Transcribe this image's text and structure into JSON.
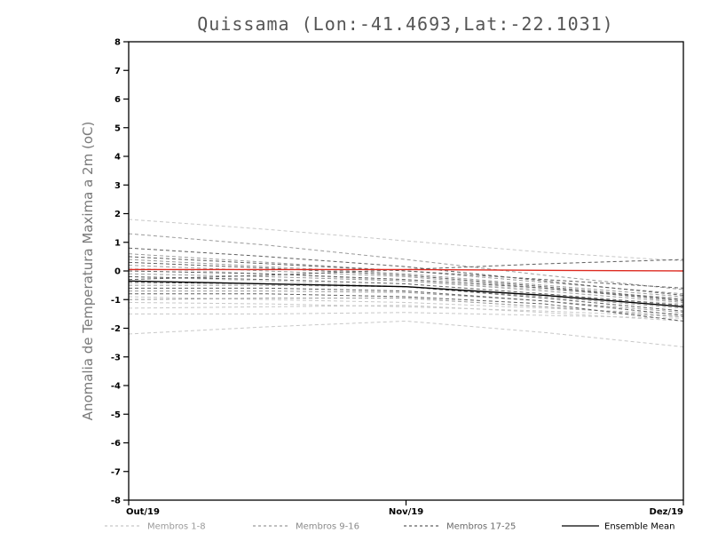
{
  "chart_data": {
    "type": "line",
    "title": "Quissama (Lon:-41.4693,Lat:-22.1031)",
    "ylabel": "Anomalia de Temperatura Maxima a 2m (oC)",
    "xlabel": "",
    "ylim": [
      -8,
      8
    ],
    "ytick_step": 1,
    "grid": false,
    "legend_position": "bottom",
    "x_categories": [
      "Out/19",
      "Nov/19",
      "Dez/19"
    ],
    "x_sample_positions": [
      0,
      0.25,
      0.5,
      0.75,
      1
    ],
    "groups": [
      {
        "name": "Membros 1-8",
        "color": "#c8c8c8",
        "style": "dashed",
        "members": [
          [
            1.8,
            1.45,
            1.05,
            0.65,
            0.35
          ],
          [
            -1.5,
            -1.5,
            -1.45,
            -1.55,
            -1.65
          ],
          [
            -2.2,
            -1.95,
            -1.75,
            -2.15,
            -2.65
          ],
          [
            -1.1,
            -1.15,
            -1.25,
            -1.4,
            -1.6
          ],
          [
            -0.9,
            -1.0,
            -1.1,
            -1.3,
            -1.5
          ],
          [
            -0.2,
            -0.35,
            -0.55,
            -0.85,
            -1.15
          ],
          [
            0.1,
            -0.1,
            -0.35,
            -0.65,
            -0.95
          ],
          [
            -1.3,
            -1.25,
            -1.2,
            -1.45,
            -1.75
          ]
        ]
      },
      {
        "name": "Membros 9-16",
        "color": "#9a9a9a",
        "style": "dashed",
        "members": [
          [
            1.3,
            0.9,
            0.4,
            -0.15,
            -0.65
          ],
          [
            0.6,
            0.3,
            0.0,
            -0.4,
            -0.8
          ],
          [
            0.4,
            0.15,
            -0.1,
            -0.5,
            -0.9
          ],
          [
            0.2,
            0.0,
            -0.2,
            -0.6,
            -1.0
          ],
          [
            -0.1,
            -0.2,
            -0.35,
            -0.7,
            -1.1
          ],
          [
            -0.5,
            -0.5,
            -0.55,
            -0.9,
            -1.3
          ],
          [
            -0.7,
            -0.7,
            -0.75,
            -1.05,
            -1.45
          ],
          [
            -1.0,
            -0.95,
            -0.95,
            -1.25,
            -1.6
          ]
        ]
      },
      {
        "name": "Membros 17-25",
        "color": "#5f5f5f",
        "style": "dashed",
        "members": [
          [
            0.8,
            0.5,
            0.15,
            -0.35,
            -0.85
          ],
          [
            0.5,
            0.25,
            0.0,
            -0.3,
            -0.6
          ],
          [
            0.3,
            0.1,
            -0.15,
            -0.55,
            -1.0
          ],
          [
            0.0,
            -0.1,
            -0.3,
            -0.6,
            -1.05
          ],
          [
            -0.2,
            -0.3,
            -0.45,
            -0.8,
            -1.2
          ],
          [
            -0.4,
            -0.45,
            -0.55,
            -0.95,
            -1.4
          ],
          [
            -0.6,
            -0.6,
            -0.7,
            -1.05,
            -1.55
          ],
          [
            -0.8,
            -0.8,
            -0.9,
            -1.15,
            -1.75
          ],
          [
            -0.3,
            -0.15,
            0.05,
            0.25,
            0.4
          ]
        ]
      }
    ],
    "reference": {
      "name": "Zero reference",
      "color": "#dd2a20",
      "style": "solid",
      "values": [
        0.05,
        0.05,
        0.05,
        0.02,
        0.0
      ]
    },
    "mean": {
      "name": "Ensemble Mean",
      "color": "#000000",
      "style": "solid",
      "values": [
        -0.35,
        -0.45,
        -0.55,
        -0.85,
        -1.25
      ]
    },
    "legend": [
      {
        "label": "Membros 1-8",
        "color": "#c8c8c8",
        "label_color": "#9a9a9a",
        "dashed": true
      },
      {
        "label": "Membros 9-16",
        "color": "#9a9a9a",
        "label_color": "#8a8a8a",
        "dashed": true
      },
      {
        "label": "Membros 17-25",
        "color": "#5f5f5f",
        "label_color": "#6a6a6a",
        "dashed": true
      },
      {
        "label": "Ensemble Mean",
        "color": "#000000",
        "label_color": "#000000",
        "dashed": false
      }
    ]
  }
}
